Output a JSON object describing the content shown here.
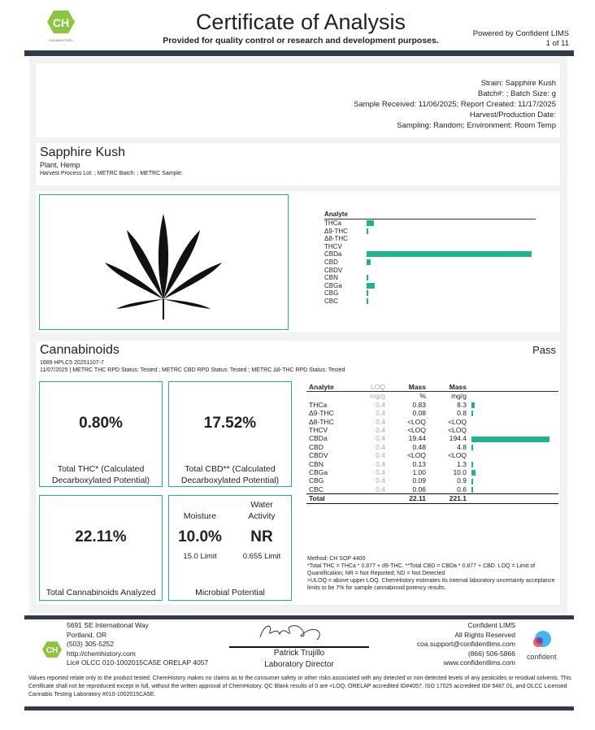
{
  "header": {
    "logo_text": "CH",
    "logo_sub": "CHEMHISTORY",
    "title": "Certificate of Analysis",
    "subtitle": "Provided for quality control or research and development purposes.",
    "powered": "Powered by Confident LIMS",
    "page": "1 of 11"
  },
  "sample_info": [
    "Strain: Sapphire Kush",
    "Batch#: ; Batch Size:  g",
    "Sample Received: 11/06/2025; Report Created: 11/17/2025",
    "Harvest/Production Date:",
    "Sampling: Random; Environment: Room Temp"
  ],
  "product": {
    "name": "Sapphire Kush",
    "type": "Plant, Hemp",
    "lot": "Harvest Process Lot: ; METRC Batch: ; METRC Sample:"
  },
  "mini_chart": {
    "header": "Analyte"
  },
  "cannabinoids": {
    "title": "Cannabinoids",
    "status": "Pass",
    "id": "1689 HPLC5 20251107-7",
    "status_line": "11/07/2025 | METRC THC RPD Status: Tested ; METRC CBD RPD Status: Tested ; METRC Δ8-THC RPD Status: Tested",
    "total_thc": {
      "value": "0.80%",
      "label": "Total THC* (Calculated Decarboxylated Potential)"
    },
    "total_cbd": {
      "value": "17.52%",
      "label": "Total CBD** (Calculated Decarboxylated Potential)"
    },
    "total_cann": {
      "value": "22.11%",
      "label": "Total Cannabinoids Analyzed"
    },
    "moisture": {
      "label": "Moisture",
      "value": "10.0%",
      "limit": "15.0 Limit"
    },
    "water": {
      "label": "Water Activity",
      "value": "NR",
      "limit": "0.655 Limit"
    },
    "microbial": "Microbial Potential"
  },
  "table": {
    "headers": [
      "Analyte",
      "LOQ",
      "Mass",
      "Mass"
    ],
    "units": [
      "",
      "mg/g",
      "%",
      "mg/g"
    ],
    "rows": [
      [
        "THCa",
        "0.4",
        "0.83",
        "8.3"
      ],
      [
        "Δ9-THC",
        "0.4",
        "0.08",
        "0.8"
      ],
      [
        "Δ8-THC",
        "0.4",
        "<LOQ",
        "<LOQ"
      ],
      [
        "THCV",
        "0.4",
        "<LOQ",
        "<LOQ"
      ],
      [
        "CBDa",
        "0.4",
        "19.44",
        "194.4"
      ],
      [
        "CBD",
        "0.4",
        "0.48",
        "4.8"
      ],
      [
        "CBDV",
        "0.4",
        "<LOQ",
        "<LOQ"
      ],
      [
        "CBN",
        "0.4",
        "0.13",
        "1.3"
      ],
      [
        "CBGa",
        "0.4",
        "1.00",
        "10.0"
      ],
      [
        "CBG",
        "0.4",
        "0.09",
        "0.9"
      ],
      [
        "CBC",
        "0.4",
        "0.06",
        "0.6"
      ]
    ],
    "total": [
      "Total",
      "",
      "22.11",
      "221.1"
    ]
  },
  "notes": {
    "method": "Method: CH SOP 4400",
    "n1": "*Total THC = THCa * 0.877 + d9-THC. **Total CBD = CBDa * 0.877 + CBD. LOQ = Limit of Quantification; NR = Not Reported; ND = Not Detected",
    "n2": ">ULOQ = above upper LOQ. ChemHistory estimates its internal laboratory uncertainty acceptance limits to be 7% for sample cannabinoid potency results."
  },
  "footer": {
    "address": [
      "5691 SE International Way",
      "Portland, OR",
      "(503) 305-5252",
      "http://chemhistory.com",
      "Lic# OLCC 010-1002015CA5E ORELAP 4057"
    ],
    "signer": "Patrick Trujillo",
    "signer_title": "Laboratory Director",
    "lims": [
      "Confident LIMS",
      "All Rights Reserved",
      "coa.support@confidentlims.com",
      "(866) 506-5866",
      "www.confidentlims.com"
    ],
    "confident_logo": "confident",
    "disclaimer": "Values reported relate only to the product tested. ChemHistory makes no claims as to the consumer safety or other risks associated with any detected or non-detected levels of any pesticides or residual solvents. This Certificate shall not be reproduced except in full, without the written approval of ChemHistory. QC Blank results of 0 are <LOQ.  ORELAP accredited ID#4057, ISO 17025 accredited ID# 5487.01, and OLCC Licensed Cannabis Testing Laboratory #010-1002015CA5E."
  },
  "colors": {
    "accent": "#20b393",
    "bar": "#2d3a48",
    "logo": "#8cc63f"
  }
}
